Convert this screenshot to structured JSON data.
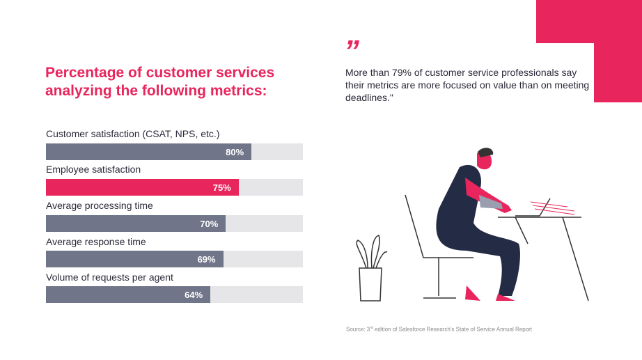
{
  "header": {
    "title": "Percentage of customer services analyzing the following metrics:"
  },
  "quote": {
    "mark": "”",
    "text": "More than 79% of customer service professionals say their metrics are more focused on value than on meeting deadlines.\""
  },
  "source": {
    "prefix": "Source: 3",
    "sup": "rd",
    "suffix": " edition of Salesforce Research's State of Service Annual Report"
  },
  "colors": {
    "accent": "#e8255c",
    "bar": "#707589",
    "track": "#e6e6e8"
  },
  "chart_data": {
    "type": "bar",
    "orientation": "horizontal",
    "title": "Percentage of customer services analyzing the following metrics:",
    "categories": [
      "Customer satisfaction (CSAT, NPS, etc.)",
      "Employee satisfaction",
      "Average processing time",
      "Average response time",
      "Volume of requests per agent"
    ],
    "values": [
      80,
      75,
      70,
      69,
      64
    ],
    "value_labels": [
      "80%",
      "75%",
      "70%",
      "69%",
      "64%"
    ],
    "highlighted": [
      false,
      true,
      false,
      false,
      false
    ],
    "xlim": [
      0,
      100
    ],
    "xlabel": "",
    "ylabel": "",
    "grid": false
  }
}
